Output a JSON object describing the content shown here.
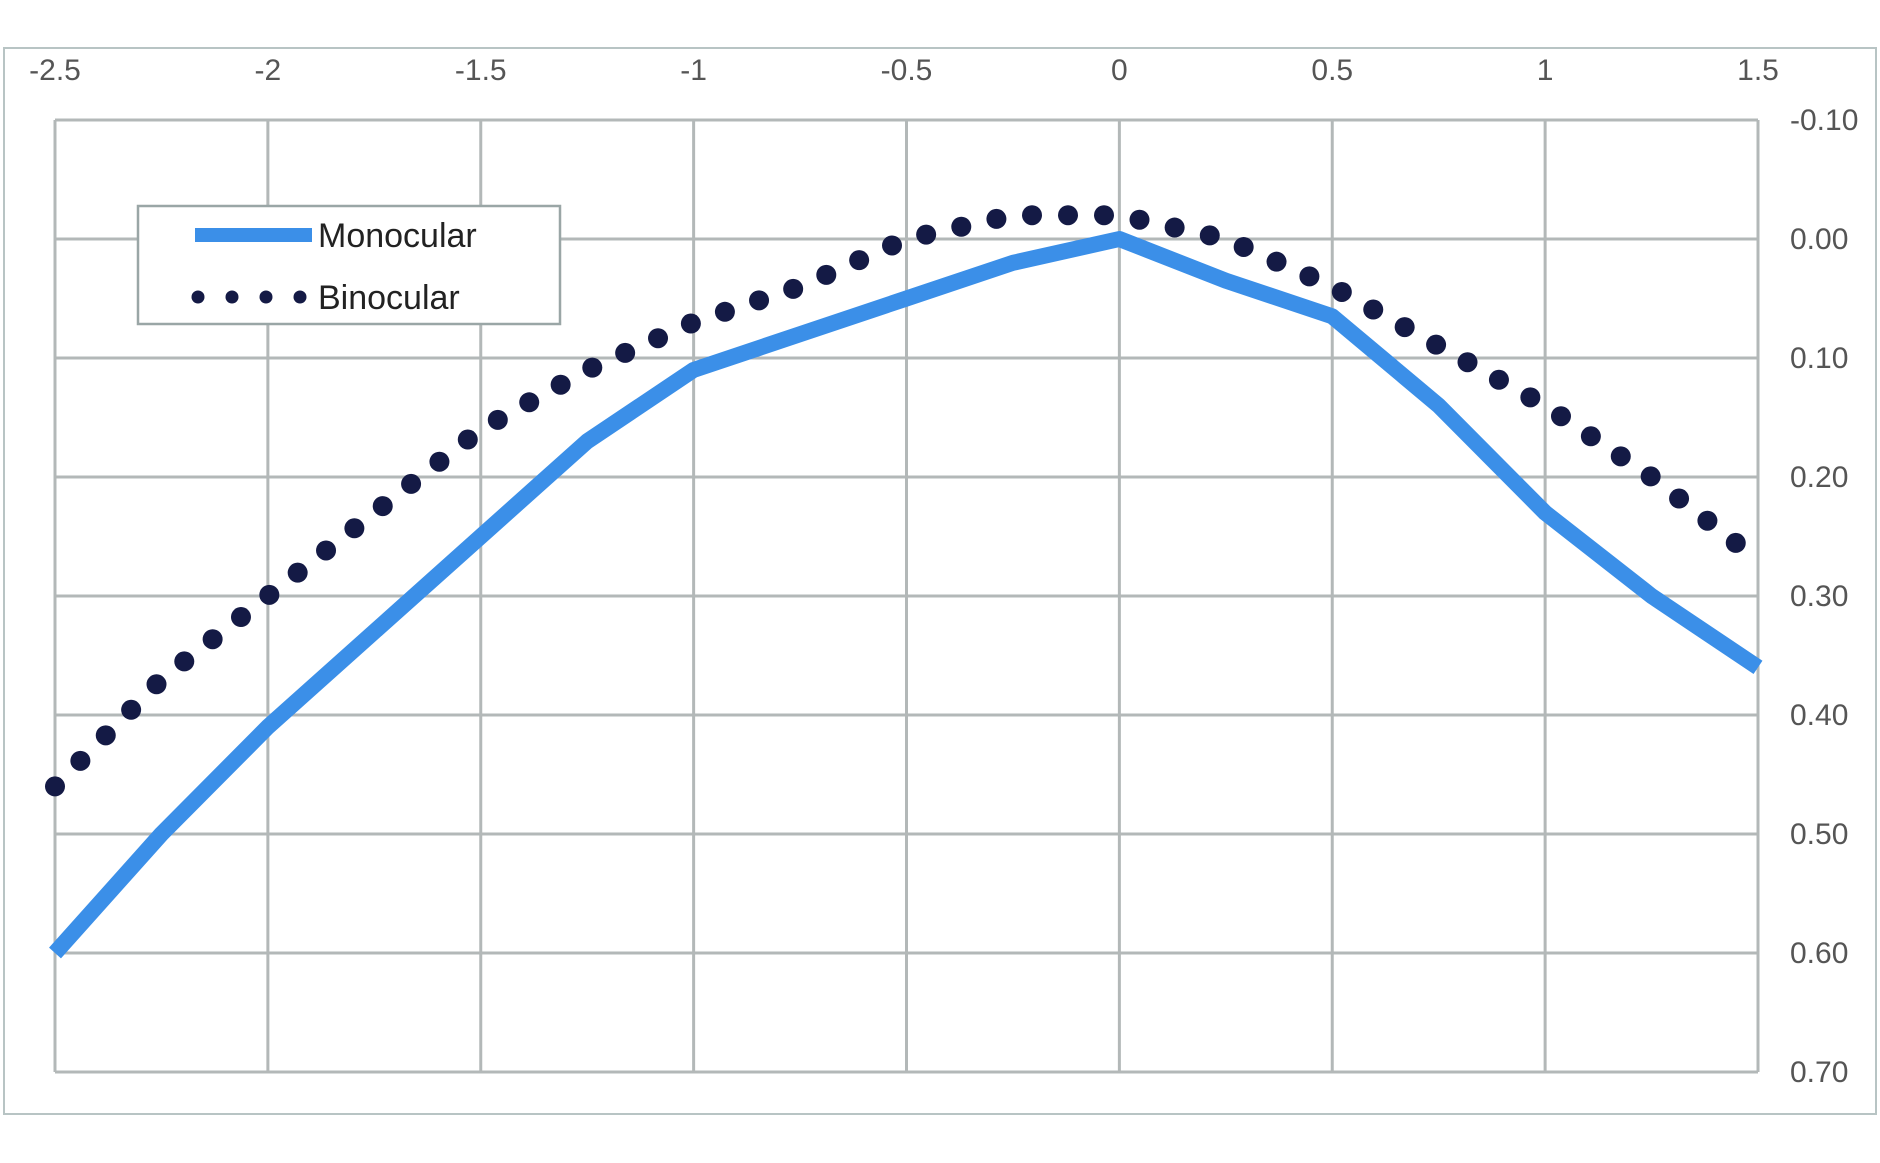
{
  "chart_data": {
    "type": "line",
    "title": "",
    "xlabel": "",
    "ylabel": "",
    "x_axis_position": "top",
    "y_axis_position": "right",
    "y_axis_inverted": true,
    "xlim": [
      -2.5,
      1.5
    ],
    "ylim": [
      -0.1,
      0.7
    ],
    "x_ticks": [
      "-2.5",
      "-2",
      "-1.5",
      "-1",
      "-0.5",
      "0",
      "0.5",
      "1",
      "1.5"
    ],
    "y_ticks": [
      "-0.10",
      "0.00",
      "0.10",
      "0.20",
      "0.30",
      "0.40",
      "0.50",
      "0.60",
      "0.70"
    ],
    "grid": true,
    "legend_position": "top-left",
    "series": [
      {
        "name": "Monocular",
        "style": "solid",
        "color": "#3b8fe8",
        "points": [
          [
            -2.5,
            0.6
          ],
          [
            -2.25,
            0.5
          ],
          [
            -2.0,
            0.41
          ],
          [
            -1.75,
            0.33
          ],
          [
            -1.5,
            0.25
          ],
          [
            -1.25,
            0.17
          ],
          [
            -1.0,
            0.11
          ],
          [
            -0.75,
            0.08
          ],
          [
            -0.5,
            0.05
          ],
          [
            -0.25,
            0.02
          ],
          [
            0.0,
            0.0
          ],
          [
            0.25,
            0.035
          ],
          [
            0.5,
            0.065
          ],
          [
            0.75,
            0.14
          ],
          [
            1.0,
            0.23
          ],
          [
            1.25,
            0.3
          ],
          [
            1.5,
            0.36
          ]
        ]
      },
      {
        "name": "Binocular",
        "style": "dotted",
        "color": "#141a45",
        "points": [
          [
            -2.5,
            0.46
          ],
          [
            -2.25,
            0.37
          ],
          [
            -2.0,
            0.3
          ],
          [
            -1.75,
            0.23
          ],
          [
            -1.5,
            0.16
          ],
          [
            -1.25,
            0.11
          ],
          [
            -1.0,
            0.07
          ],
          [
            -0.75,
            0.04
          ],
          [
            -0.5,
            0.0
          ],
          [
            -0.25,
            -0.02
          ],
          [
            0.0,
            -0.02
          ],
          [
            0.25,
            0.0
          ],
          [
            0.5,
            0.04
          ],
          [
            0.75,
            0.09
          ],
          [
            1.0,
            0.14
          ],
          [
            1.25,
            0.2
          ],
          [
            1.5,
            0.27
          ]
        ]
      }
    ]
  }
}
